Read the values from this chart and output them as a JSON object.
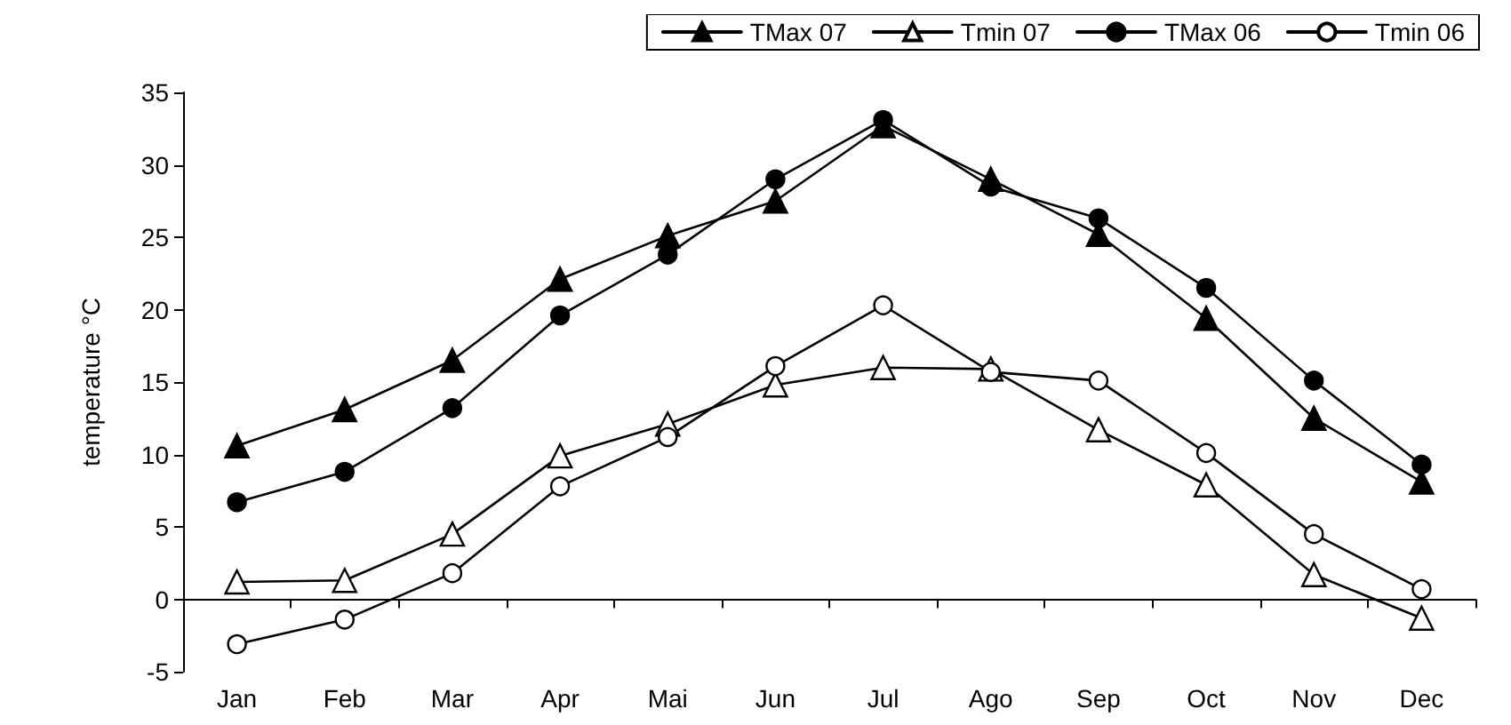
{
  "chart_data": {
    "type": "line",
    "ylabel": "temperature °C",
    "categories": [
      "Jan",
      "Feb",
      "Mar",
      "Apr",
      "Mai",
      "Jun",
      "Jul",
      "Ago",
      "Sep",
      "Oct",
      "Nov",
      "Dec"
    ],
    "series": [
      {
        "name": "TMax 07",
        "color": "#000000",
        "marker": "triangle",
        "values": [
          10.6,
          13.1,
          16.5,
          22.1,
          25.1,
          27.5,
          32.7,
          29,
          25.2,
          19.4,
          12.5,
          8.1
        ]
      },
      {
        "name": "Tmin 07",
        "color": "#ffffff",
        "marker": "triangle",
        "values": [
          1.2,
          1.3,
          4.5,
          9.9,
          12.1,
          14.8,
          16,
          15.9,
          11.7,
          7.9,
          1.7,
          -1.3
        ]
      },
      {
        "name": "TMax 06",
        "color": "#000000",
        "marker": "circle",
        "values": [
          6.7,
          8.8,
          13.2,
          19.6,
          23.8,
          29,
          33.1,
          28.5,
          26.3,
          21.5,
          15.1,
          9.3
        ]
      },
      {
        "name": "Tmin 06",
        "color": "#ffffff",
        "marker": "circle",
        "values": [
          -3.1,
          -1.4,
          1.8,
          7.8,
          11.2,
          16.1,
          20.3,
          15.7,
          15.1,
          10.1,
          4.5,
          0.7
        ]
      }
    ],
    "ylim": [
      -5,
      35
    ],
    "yticks": [
      -5,
      0,
      5,
      10,
      15,
      20,
      25,
      30,
      35
    ],
    "legend": "top right",
    "line_style": "solid"
  }
}
